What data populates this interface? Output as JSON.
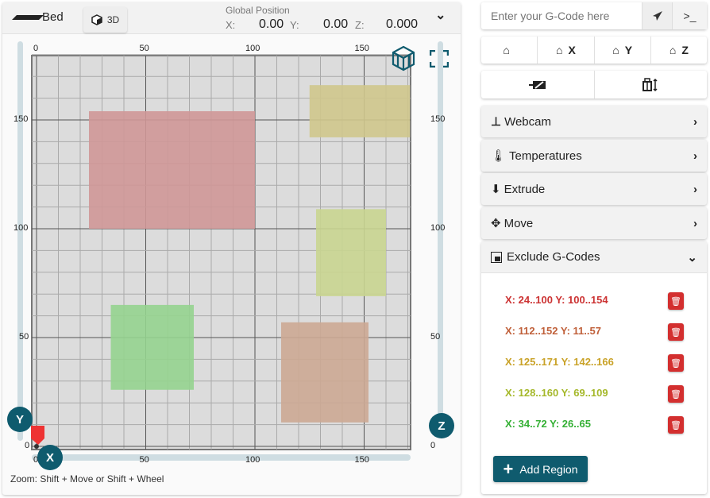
{
  "bed": {
    "title": "Bed",
    "view_3d_label": "3D",
    "position": {
      "heading": "Global Position",
      "x_label": "X:",
      "x": "0.00",
      "y_label": "Y:",
      "y": "0.00",
      "z_label": "Z:",
      "z": "0.000"
    },
    "x_ticks": [
      "0",
      "50",
      "100",
      "150"
    ],
    "y_ticks": [
      "0",
      "50",
      "100",
      "150"
    ],
    "z_ticks": [
      "0",
      "50",
      "100",
      "150"
    ],
    "axis_buttons": {
      "x": "X",
      "y": "Y",
      "z": "Z"
    },
    "zoom_hint": "Zoom: Shift + Move or Shift + Wheel",
    "accent": "#0f5b6e"
  },
  "gcode": {
    "placeholder": "Enter your G-Code here",
    "send_icon": "paper-plane-icon",
    "terminal_label": ">_"
  },
  "home": [
    "",
    "X",
    "Y",
    "Z"
  ],
  "sections": [
    {
      "label": "Webcam",
      "icon": "webcam-icon"
    },
    {
      "label": "Temperatures",
      "icon": "thermometer-icon"
    },
    {
      "label": "Extrude",
      "icon": "extrude-icon"
    },
    {
      "label": "Move",
      "icon": "move-arrows-icon"
    },
    {
      "label": "Exclude G-Codes",
      "icon": "exclude-icon"
    }
  ],
  "regions": [
    {
      "label": "X: 24..100 Y: 100..154",
      "x": [
        24,
        100
      ],
      "y": [
        100,
        154
      ],
      "color": "#cc3333",
      "fill": "#cf9797"
    },
    {
      "label": "X: 112..152 Y: 11..57",
      "x": [
        112,
        152
      ],
      "y": [
        11,
        57
      ],
      "color": "#c0603a",
      "fill": "#cca994"
    },
    {
      "label": "X: 125..171 Y: 142..166",
      "x": [
        125,
        171
      ],
      "y": [
        142,
        166
      ],
      "color": "#c9a227",
      "fill": "#cfc68c"
    },
    {
      "label": "X: 128..160 Y: 69..109",
      "x": [
        128,
        160
      ],
      "y": [
        69,
        109
      ],
      "color": "#a5b82a",
      "fill": "#c9d590"
    },
    {
      "label": "X: 34..72 Y: 26..65",
      "x": [
        34,
        72
      ],
      "y": [
        26,
        65
      ],
      "color": "#34b034",
      "fill": "#95d38f"
    }
  ],
  "add_region_label": "Add Region"
}
